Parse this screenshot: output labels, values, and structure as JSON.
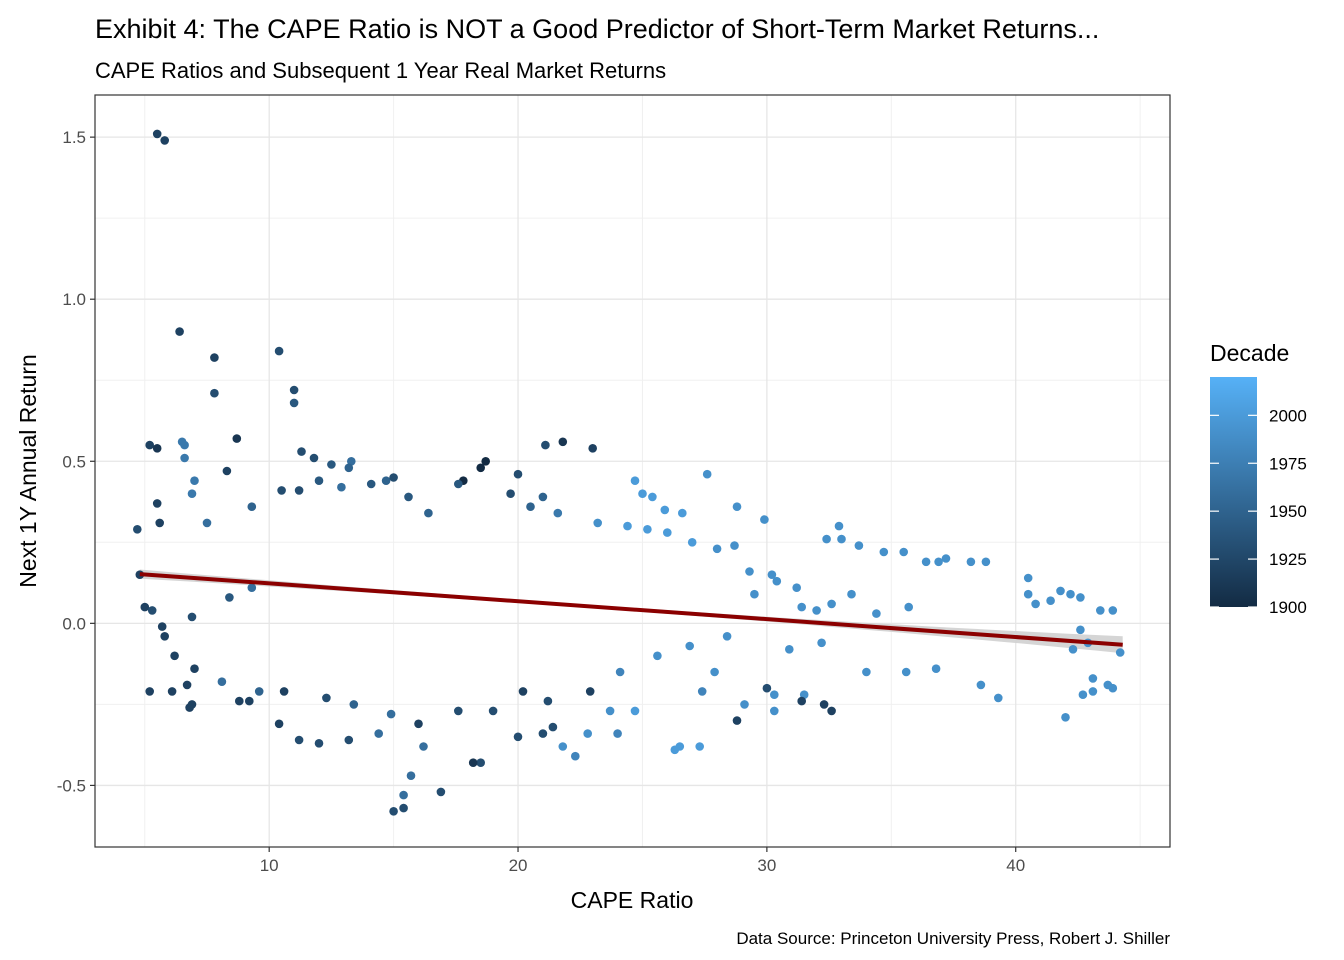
{
  "chart_data": {
    "type": "scatter",
    "title": "Exhibit 4: The CAPE Ratio is NOT a Good Predictor of Short-Term Market Returns...",
    "subtitle": "CAPE Ratios and Subsequent 1 Year Real Market Returns",
    "xlabel": "CAPE Ratio",
    "ylabel": "Next 1Y Annual Return",
    "caption": "Data Source: Princeton University Press, Robert J. Shiller",
    "xlim": [
      3.0,
      46.2
    ],
    "ylim": [
      -0.69,
      1.63
    ],
    "x_ticks": [
      10,
      20,
      30,
      40
    ],
    "x_tick_labels": [
      "10",
      "20",
      "30",
      "40"
    ],
    "y_ticks": [
      -0.5,
      0.0,
      0.5,
      1.0,
      1.5
    ],
    "y_tick_labels": [
      "-0.5",
      "0.0",
      "0.5",
      "1.0",
      "1.5"
    ],
    "grid": true,
    "legend": {
      "title": "Decade",
      "position": "right",
      "range": [
        1900,
        2020
      ],
      "breaks": [
        1900,
        1925,
        1950,
        1975,
        2000
      ],
      "break_labels": [
        "1900",
        "1925",
        "1950",
        "1975",
        "2000"
      ],
      "color_low": "#132b43",
      "color_high": "#56b1f7"
    },
    "trend_line": {
      "x": [
        4.8,
        44.3
      ],
      "y": [
        0.152,
        -0.066
      ],
      "band_halfwidth_ends": [
        0.014,
        0.026
      ],
      "band_halfwidth_mid": 0.005,
      "color": "#8b0000",
      "band_color": "#d3d3d3"
    },
    "series": [
      {
        "points": [
          [
            5.5,
            1.51,
            1920
          ],
          [
            5.8,
            1.49,
            1920
          ],
          [
            6.4,
            0.9,
            1920
          ],
          [
            7.8,
            0.82,
            1920
          ],
          [
            7.8,
            0.71,
            1930
          ],
          [
            10.4,
            0.84,
            1930
          ],
          [
            11.0,
            0.72,
            1930
          ],
          [
            11.0,
            0.68,
            1940
          ],
          [
            5.2,
            0.55,
            1920
          ],
          [
            5.5,
            0.54,
            1910
          ],
          [
            6.5,
            0.56,
            1970
          ],
          [
            6.6,
            0.55,
            1970
          ],
          [
            6.6,
            0.51,
            1970
          ],
          [
            8.7,
            0.57,
            1910
          ],
          [
            8.3,
            0.47,
            1920
          ],
          [
            11.3,
            0.53,
            1930
          ],
          [
            11.8,
            0.51,
            1930
          ],
          [
            12.5,
            0.49,
            1940
          ],
          [
            13.3,
            0.5,
            1960
          ],
          [
            13.2,
            0.48,
            1950
          ],
          [
            18.5,
            0.48,
            1900
          ],
          [
            17.8,
            0.44,
            1900
          ],
          [
            18.7,
            0.5,
            1900
          ],
          [
            20.0,
            0.46,
            1930
          ],
          [
            21.1,
            0.55,
            1930
          ],
          [
            21.8,
            0.56,
            1910
          ],
          [
            23.0,
            0.54,
            1920
          ],
          [
            27.6,
            0.46,
            1990
          ],
          [
            25.0,
            0.4,
            2000
          ],
          [
            25.4,
            0.39,
            2000
          ],
          [
            25.9,
            0.35,
            2000
          ],
          [
            24.7,
            0.44,
            2000
          ],
          [
            26.6,
            0.34,
            2000
          ],
          [
            28.8,
            0.36,
            1990
          ],
          [
            29.9,
            0.32,
            1990
          ],
          [
            32.4,
            0.26,
            1990
          ],
          [
            32.9,
            0.3,
            1990
          ],
          [
            33.0,
            0.26,
            1990
          ],
          [
            33.7,
            0.24,
            1990
          ],
          [
            34.7,
            0.22,
            1990
          ],
          [
            35.5,
            0.22,
            1990
          ],
          [
            36.4,
            0.19,
            1990
          ],
          [
            36.9,
            0.19,
            1990
          ],
          [
            37.2,
            0.2,
            1990
          ],
          [
            38.2,
            0.19,
            1990
          ],
          [
            38.8,
            0.19,
            1990
          ],
          [
            40.5,
            0.14,
            1990
          ],
          [
            40.5,
            0.09,
            1990
          ],
          [
            40.8,
            0.06,
            1990
          ],
          [
            41.4,
            0.07,
            1990
          ],
          [
            41.8,
            0.1,
            1990
          ],
          [
            42.2,
            0.09,
            1990
          ],
          [
            42.6,
            0.08,
            1990
          ],
          [
            43.4,
            0.04,
            1990
          ],
          [
            43.9,
            0.04,
            1990
          ],
          [
            42.6,
            -0.02,
            1990
          ],
          [
            42.9,
            -0.06,
            1990
          ],
          [
            42.3,
            -0.08,
            1990
          ],
          [
            44.2,
            -0.09,
            1990
          ],
          [
            43.1,
            -0.17,
            1990
          ],
          [
            43.1,
            -0.21,
            1990
          ],
          [
            42.7,
            -0.22,
            1990
          ],
          [
            43.7,
            -0.19,
            1990
          ],
          [
            43.9,
            -0.2,
            1990
          ],
          [
            42.0,
            -0.29,
            1990
          ],
          [
            35.6,
            -0.15,
            1990
          ],
          [
            36.8,
            -0.14,
            1990
          ],
          [
            38.6,
            -0.19,
            1990
          ],
          [
            39.3,
            -0.23,
            1990
          ],
          [
            34.0,
            -0.15,
            1990
          ],
          [
            30.0,
            -0.2,
            1930
          ],
          [
            30.3,
            -0.22,
            1990
          ],
          [
            31.5,
            -0.22,
            1990
          ],
          [
            32.3,
            -0.25,
            1920
          ],
          [
            32.6,
            -0.27,
            1920
          ],
          [
            31.4,
            -0.24,
            1920
          ],
          [
            30.3,
            -0.27,
            1990
          ],
          [
            29.1,
            -0.25,
            1990
          ],
          [
            28.8,
            -0.3,
            1920
          ],
          [
            27.4,
            -0.21,
            1980
          ],
          [
            26.5,
            -0.38,
            2000
          ],
          [
            26.3,
            -0.39,
            2000
          ],
          [
            27.3,
            -0.38,
            2000
          ],
          [
            24.7,
            -0.27,
            2000
          ],
          [
            24.0,
            -0.34,
            1980
          ],
          [
            22.3,
            -0.41,
            1980
          ],
          [
            21.8,
            -0.38,
            1990
          ],
          [
            21.0,
            -0.34,
            1930
          ],
          [
            21.4,
            -0.32,
            1930
          ],
          [
            20.0,
            -0.35,
            1930
          ],
          [
            18.5,
            -0.43,
            1930
          ],
          [
            18.2,
            -0.43,
            1910
          ],
          [
            16.9,
            -0.52,
            1930
          ],
          [
            15.4,
            -0.53,
            1960
          ],
          [
            15.0,
            -0.58,
            1930
          ],
          [
            15.4,
            -0.57,
            1930
          ],
          [
            16.2,
            -0.38,
            1960
          ],
          [
            15.7,
            -0.47,
            1960
          ],
          [
            14.4,
            -0.34,
            1960
          ],
          [
            13.2,
            -0.36,
            1930
          ],
          [
            12.0,
            -0.37,
            1930
          ],
          [
            11.2,
            -0.36,
            1930
          ],
          [
            10.4,
            -0.31,
            1920
          ],
          [
            9.2,
            -0.24,
            1920
          ],
          [
            8.8,
            -0.24,
            1920
          ],
          [
            6.8,
            -0.26,
            1920
          ],
          [
            6.9,
            -0.25,
            1920
          ],
          [
            6.1,
            -0.21,
            1920
          ],
          [
            6.7,
            -0.19,
            1920
          ],
          [
            5.2,
            -0.21,
            1920
          ],
          [
            4.8,
            0.15,
            1920
          ],
          [
            4.7,
            0.29,
            1930
          ],
          [
            5.0,
            0.05,
            1920
          ],
          [
            5.3,
            0.04,
            1930
          ],
          [
            5.8,
            -0.04,
            1920
          ],
          [
            5.6,
            0.31,
            1920
          ],
          [
            5.5,
            0.37,
            1920
          ],
          [
            6.9,
            0.4,
            1970
          ],
          [
            7.0,
            0.44,
            1970
          ],
          [
            7.5,
            0.31,
            1960
          ],
          [
            9.3,
            0.36,
            1950
          ],
          [
            10.5,
            0.41,
            1930
          ],
          [
            11.2,
            0.41,
            1930
          ],
          [
            12.0,
            0.44,
            1940
          ],
          [
            12.9,
            0.42,
            1960
          ],
          [
            14.1,
            0.43,
            1940
          ],
          [
            14.7,
            0.44,
            1950
          ],
          [
            15.0,
            0.45,
            1930
          ],
          [
            15.6,
            0.39,
            1940
          ],
          [
            16.4,
            0.34,
            1950
          ],
          [
            17.6,
            0.43,
            1940
          ],
          [
            19.7,
            0.4,
            1930
          ],
          [
            20.5,
            0.36,
            1950
          ],
          [
            21.0,
            0.39,
            1950
          ],
          [
            21.6,
            0.34,
            1970
          ],
          [
            23.2,
            0.31,
            1990
          ],
          [
            24.4,
            0.3,
            2000
          ],
          [
            25.2,
            0.29,
            2000
          ],
          [
            26.0,
            0.28,
            2000
          ],
          [
            27.0,
            0.25,
            2000
          ],
          [
            28.0,
            0.23,
            1990
          ],
          [
            28.7,
            0.24,
            1990
          ],
          [
            29.3,
            0.16,
            1990
          ],
          [
            30.2,
            0.15,
            1990
          ],
          [
            31.2,
            0.11,
            1990
          ],
          [
            29.5,
            0.09,
            1990
          ],
          [
            30.4,
            0.13,
            1990
          ],
          [
            31.4,
            0.05,
            1990
          ],
          [
            32.0,
            0.04,
            1990
          ],
          [
            32.6,
            0.06,
            1990
          ],
          [
            33.4,
            0.09,
            1990
          ],
          [
            34.4,
            0.03,
            1990
          ],
          [
            35.7,
            0.05,
            1990
          ],
          [
            30.9,
            -0.08,
            1990
          ],
          [
            32.2,
            -0.06,
            1990
          ],
          [
            28.4,
            -0.04,
            1990
          ],
          [
            27.9,
            -0.15,
            1990
          ],
          [
            26.9,
            -0.07,
            1990
          ],
          [
            25.6,
            -0.1,
            1990
          ],
          [
            24.1,
            -0.15,
            1980
          ],
          [
            22.9,
            -0.21,
            1920
          ],
          [
            23.7,
            -0.27,
            1990
          ],
          [
            22.8,
            -0.34,
            1990
          ],
          [
            21.2,
            -0.24,
            1930
          ],
          [
            20.2,
            -0.21,
            1920
          ],
          [
            19.0,
            -0.27,
            1930
          ],
          [
            17.6,
            -0.27,
            1930
          ],
          [
            16.0,
            -0.31,
            1920
          ],
          [
            14.9,
            -0.28,
            1960
          ],
          [
            13.4,
            -0.25,
            1950
          ],
          [
            12.3,
            -0.23,
            1930
          ],
          [
            10.6,
            -0.21,
            1920
          ],
          [
            9.6,
            -0.21,
            1950
          ],
          [
            8.1,
            -0.18,
            1960
          ],
          [
            7.0,
            -0.14,
            1920
          ],
          [
            6.2,
            -0.1,
            1920
          ],
          [
            5.7,
            -0.01,
            1920
          ],
          [
            6.9,
            0.02,
            1930
          ],
          [
            8.4,
            0.08,
            1940
          ],
          [
            9.3,
            0.11,
            1960
          ]
        ]
      }
    ]
  }
}
